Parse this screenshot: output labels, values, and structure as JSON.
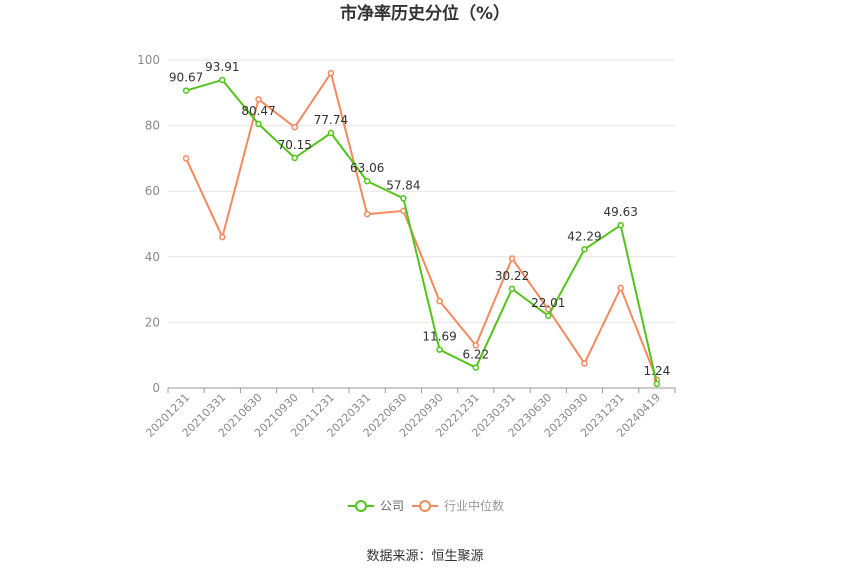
{
  "chart_data": {
    "type": "line",
    "title": "市净率历史分位（%）",
    "categories": [
      "20201231",
      "20210331",
      "20210630",
      "20210930",
      "20211231",
      "20220331",
      "20220630",
      "20220930",
      "20221231",
      "20230331",
      "20230630",
      "20230930",
      "20231231",
      "20240419"
    ],
    "series": [
      {
        "name": "公司",
        "color": "#52c41a",
        "values": [
          90.67,
          93.91,
          80.47,
          70.15,
          77.74,
          63.06,
          57.84,
          11.69,
          6.22,
          30.22,
          22.01,
          42.29,
          49.63,
          1.24
        ],
        "labels": [
          "90.67",
          "93.91",
          "80.47",
          "70.15",
          "77.74",
          "63.06",
          "57.84",
          "11.69",
          "6.22",
          "30.22",
          "22.01",
          "42.29",
          "49.63",
          "1.24"
        ]
      },
      {
        "name": "行业中位数",
        "color": "#f4895f",
        "values": [
          70,
          46,
          88,
          79.5,
          96,
          53,
          54,
          26.5,
          13,
          39.5,
          24,
          7.5,
          30.5,
          2.5
        ]
      }
    ],
    "yticks": [
      "0",
      "20",
      "40",
      "60",
      "80",
      "100"
    ],
    "ylim": [
      0,
      100
    ],
    "grid": true,
    "legend": "bottom-center"
  },
  "footer": {
    "source": "数据来源：恒生聚源"
  }
}
